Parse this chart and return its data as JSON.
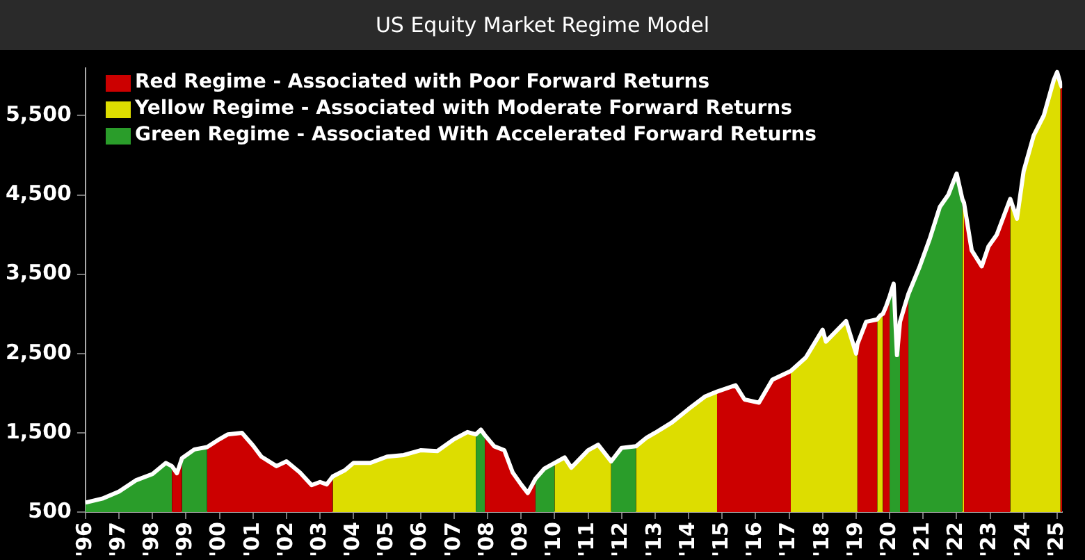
{
  "chart_data": {
    "type": "area",
    "title": "US Equity Market Regime Model",
    "x": [
      1996.0,
      1996.5,
      1997.0,
      1997.5,
      1998.0,
      1998.4,
      1998.58,
      1998.73,
      1998.88,
      1999.25,
      1999.63,
      2000.0,
      2000.25,
      2000.67,
      2001.0,
      2001.25,
      2001.7,
      2002.0,
      2002.4,
      2002.75,
      2003.0,
      2003.2,
      2003.38,
      2003.75,
      2004.0,
      2004.5,
      2005.0,
      2005.5,
      2006.0,
      2006.5,
      2007.0,
      2007.4,
      2007.65,
      2007.8,
      2007.92,
      2008.2,
      2008.5,
      2008.75,
      2009.0,
      2009.2,
      2009.43,
      2009.7,
      2010.0,
      2010.3,
      2010.5,
      2011.0,
      2011.3,
      2011.69,
      2012.0,
      2012.43,
      2012.75,
      2013.0,
      2013.5,
      2014.0,
      2014.5,
      2014.85,
      2015.4,
      2015.67,
      2016.1,
      2016.5,
      2017.05,
      2017.5,
      2018.0,
      2018.1,
      2018.7,
      2019.0,
      2019.04,
      2019.3,
      2019.63,
      2019.72,
      2019.8,
      2019.9,
      2020.0,
      2020.12,
      2020.22,
      2020.31,
      2020.45,
      2020.56,
      2020.9,
      2021.2,
      2021.5,
      2021.75,
      2022.0,
      2022.17,
      2022.2,
      2022.22,
      2022.45,
      2022.75,
      2022.95,
      2023.2,
      2023.6,
      2023.8,
      2024.0,
      2024.3,
      2024.6,
      2024.9,
      2025.0,
      2025.1,
      2025.15
    ],
    "series": [
      {
        "name": "Red Regime - Associated with Poor Forward Returns",
        "type": "area",
        "color": "#cc0000",
        "values": [
          null,
          null,
          null,
          null,
          null,
          null,
          1080,
          990,
          1180,
          null,
          1320,
          1420,
          1480,
          1500,
          1340,
          1200,
          1080,
          1140,
          1000,
          840,
          880,
          850,
          950,
          null,
          null,
          null,
          null,
          null,
          null,
          null,
          null,
          null,
          null,
          null,
          1470,
          1330,
          1280,
          1000,
          850,
          740,
          920,
          null,
          null,
          null,
          null,
          null,
          null,
          null,
          null,
          null,
          null,
          null,
          null,
          null,
          null,
          2020,
          2100,
          1920,
          1880,
          2170,
          2280,
          null,
          null,
          null,
          null,
          null,
          2620,
          2900,
          2930,
          null,
          3000,
          3100,
          3220,
          null,
          null,
          2900,
          3100,
          3250,
          null,
          null,
          null,
          null,
          null,
          null,
          null,
          4400,
          3800,
          3600,
          3850,
          4000,
          4450,
          null,
          null,
          null,
          null,
          null,
          null,
          5900,
          5850
        ]
      },
      {
        "name": "Yellow Regime - Associated with Moderate Forward Returns",
        "type": "area",
        "color": "#dddd00",
        "values": [
          null,
          null,
          null,
          null,
          null,
          null,
          null,
          null,
          null,
          null,
          null,
          null,
          null,
          null,
          null,
          null,
          null,
          null,
          null,
          null,
          null,
          null,
          950,
          1030,
          1120,
          1120,
          1200,
          1220,
          1280,
          1270,
          1420,
          1510,
          1480,
          null,
          null,
          null,
          null,
          null,
          null,
          null,
          null,
          null,
          1120,
          1190,
          1060,
          1280,
          1350,
          1140,
          null,
          1330,
          1440,
          1500,
          1630,
          1800,
          1960,
          2020,
          null,
          null,
          null,
          null,
          2280,
          2450,
          2800,
          2650,
          2910,
          2500,
          2620,
          null,
          2930,
          2980,
          3000,
          null,
          null,
          null,
          null,
          null,
          null,
          null,
          null,
          null,
          null,
          null,
          null,
          4450,
          4420,
          4400,
          null,
          null,
          null,
          null,
          4450,
          4200,
          4800,
          5250,
          5500,
          5950,
          6050,
          5900,
          null
        ]
      },
      {
        "name": "Green Regime - Associated With Accelerated Forward Returns",
        "type": "area",
        "color": "#2a9d2a",
        "values": [
          620,
          670,
          760,
          900,
          980,
          1120,
          1080,
          null,
          1180,
          1290,
          1320,
          null,
          null,
          null,
          null,
          null,
          null,
          null,
          null,
          null,
          null,
          null,
          null,
          null,
          null,
          null,
          null,
          null,
          null,
          null,
          null,
          null,
          1480,
          1540,
          1470,
          null,
          null,
          null,
          null,
          null,
          920,
          1050,
          1120,
          null,
          null,
          null,
          null,
          1140,
          1310,
          1330,
          null,
          null,
          null,
          null,
          null,
          null,
          null,
          null,
          null,
          null,
          null,
          null,
          null,
          null,
          null,
          null,
          null,
          null,
          null,
          null,
          null,
          null,
          3220,
          3380,
          2480,
          2900,
          null,
          3250,
          3600,
          3950,
          4350,
          4500,
          4770,
          4450,
          null,
          null,
          null,
          null,
          null,
          null,
          null,
          null,
          null,
          null,
          null,
          null,
          null,
          null,
          null
        ]
      },
      {
        "type": "line",
        "color": "#ffffff",
        "values": [
          620,
          670,
          760,
          900,
          980,
          1120,
          1080,
          990,
          1180,
          1290,
          1320,
          1420,
          1480,
          1500,
          1340,
          1200,
          1080,
          1140,
          1000,
          840,
          880,
          850,
          950,
          1030,
          1120,
          1120,
          1200,
          1220,
          1280,
          1270,
          1420,
          1510,
          1480,
          1540,
          1470,
          1330,
          1280,
          1000,
          850,
          740,
          920,
          1050,
          1120,
          1190,
          1060,
          1280,
          1350,
          1140,
          1310,
          1330,
          1440,
          1500,
          1630,
          1800,
          1960,
          2020,
          2100,
          1920,
          1880,
          2170,
          2280,
          2450,
          2800,
          2650,
          2910,
          2500,
          2620,
          2900,
          2930,
          2980,
          3000,
          3100,
          3220,
          3380,
          2480,
          2900,
          3100,
          3250,
          3600,
          3950,
          4350,
          4500,
          4770,
          4450,
          4420,
          4400,
          3800,
          3600,
          3850,
          4000,
          4450,
          4200,
          4800,
          5250,
          5500,
          5950,
          6050,
          5900,
          5850
        ]
      }
    ],
    "xlim": [
      1996,
      2025.15
    ],
    "xticks": [
      {
        "value": 1996,
        "label": "'96"
      },
      {
        "value": 1997,
        "label": "'97"
      },
      {
        "value": 1998,
        "label": "'98"
      },
      {
        "value": 1999,
        "label": "'99"
      },
      {
        "value": 2000,
        "label": "'00"
      },
      {
        "value": 2001,
        "label": "'01"
      },
      {
        "value": 2002,
        "label": "'02"
      },
      {
        "value": 2003,
        "label": "'03"
      },
      {
        "value": 2004,
        "label": "'04"
      },
      {
        "value": 2005,
        "label": "'05"
      },
      {
        "value": 2006,
        "label": "'06"
      },
      {
        "value": 2007,
        "label": "'07"
      },
      {
        "value": 2008,
        "label": "'08"
      },
      {
        "value": 2009,
        "label": "'09"
      },
      {
        "value": 2010,
        "label": "'10"
      },
      {
        "value": 2011,
        "label": "'11"
      },
      {
        "value": 2012,
        "label": "'12"
      },
      {
        "value": 2013,
        "label": "'13"
      },
      {
        "value": 2014,
        "label": "'14"
      },
      {
        "value": 2015,
        "label": "'15"
      },
      {
        "value": 2016,
        "label": "'16"
      },
      {
        "value": 2017,
        "label": "'17"
      },
      {
        "value": 2018,
        "label": "'18"
      },
      {
        "value": 2019,
        "label": "'19"
      },
      {
        "value": 2020,
        "label": "'20"
      },
      {
        "value": 2021,
        "label": "'21"
      },
      {
        "value": 2022,
        "label": "'22"
      },
      {
        "value": 2023,
        "label": "'23"
      },
      {
        "value": 2024,
        "label": "'24"
      },
      {
        "value": 2025,
        "label": "'25"
      }
    ],
    "ylim": [
      500,
      6100
    ],
    "yticks": [
      500,
      {
        "value": 1500,
        "label": "1,500"
      },
      {
        "value": 2500,
        "label": "2,500"
      },
      {
        "value": 3500,
        "label": "3,500"
      },
      {
        "value": 4500,
        "label": "4,500"
      },
      {
        "value": 5500,
        "label": "5,500"
      }
    ],
    "grid": false,
    "legend": "top left",
    "marker": "none"
  }
}
